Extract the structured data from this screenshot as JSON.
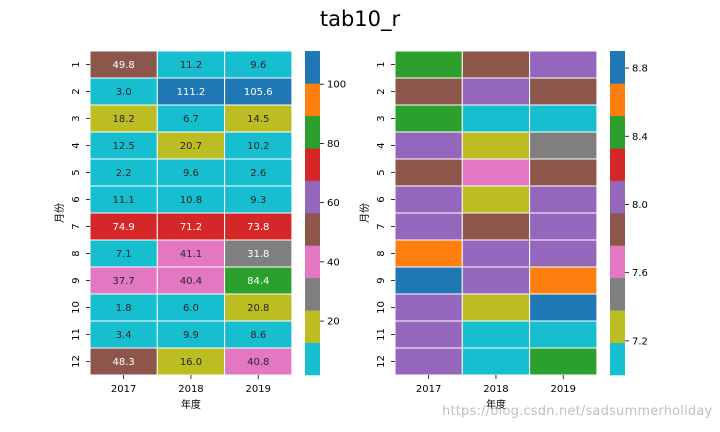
{
  "title": "tab10_r",
  "watermark": "https://blog.csdn.net/sadsummerholiday",
  "palette": [
    "#17becf",
    "#bcbd22",
    "#7f7f7f",
    "#e377c2",
    "#8c564b",
    "#9467bd",
    "#d62728",
    "#2ca02c",
    "#ff7f0e",
    "#1f77b4"
  ],
  "chart_data": [
    {
      "type": "heatmap",
      "colormap": "tab10_r",
      "xlabel": "年度",
      "ylabel": "月份",
      "x": [
        "2017",
        "2018",
        "2019"
      ],
      "y": [
        "1",
        "2",
        "3",
        "4",
        "5",
        "6",
        "7",
        "8",
        "9",
        "10",
        "11",
        "12"
      ],
      "annotate": true,
      "values": [
        [
          49.8,
          11.2,
          9.6
        ],
        [
          3.0,
          111.2,
          105.6
        ],
        [
          18.2,
          6.7,
          14.5
        ],
        [
          12.5,
          20.7,
          10.2
        ],
        [
          2.2,
          9.6,
          2.6
        ],
        [
          11.1,
          10.8,
          9.3
        ],
        [
          74.9,
          71.2,
          73.8
        ],
        [
          7.1,
          41.1,
          31.8
        ],
        [
          37.7,
          40.4,
          84.4
        ],
        [
          1.8,
          6.0,
          20.8
        ],
        [
          3.4,
          9.9,
          8.6
        ],
        [
          48.3,
          16.0,
          40.8
        ]
      ],
      "value_labels": [
        [
          "49.8",
          "11.2",
          "9.6"
        ],
        [
          "3.0",
          "111.2",
          "105.6"
        ],
        [
          "18.2",
          "6.7",
          "14.5"
        ],
        [
          "12.5",
          "20.7",
          "10.2"
        ],
        [
          "2.2",
          "9.6",
          "2.6"
        ],
        [
          "11.1",
          "10.8",
          "9.3"
        ],
        [
          "74.9",
          "71.2",
          "73.8"
        ],
        [
          "7.1",
          "41.1",
          "31.8"
        ],
        [
          "37.7",
          "40.4",
          "84.4"
        ],
        [
          "1.8",
          "6.0",
          "20.8"
        ],
        [
          "3.4",
          "9.9",
          "8.6"
        ],
        [
          "48.3",
          "16.0",
          "40.8"
        ]
      ],
      "vmin": 1.8,
      "vmax": 111.2,
      "colorbar_ticks": [
        "20",
        "40",
        "60",
        "80",
        "100"
      ]
    },
    {
      "type": "heatmap",
      "colormap": "tab10_r",
      "xlabel": "年度",
      "ylabel": "月份",
      "x": [
        "2017",
        "2018",
        "2019"
      ],
      "y": [
        "1",
        "2",
        "3",
        "4",
        "5",
        "6",
        "7",
        "8",
        "9",
        "10",
        "11",
        "12"
      ],
      "annotate": false,
      "values": [
        [
          8.35,
          7.8,
          7.95
        ],
        [
          7.8,
          7.95,
          7.8
        ],
        [
          8.35,
          7.05,
          7.05
        ],
        [
          7.95,
          7.25,
          7.45
        ],
        [
          7.8,
          7.6,
          7.8
        ],
        [
          7.95,
          7.25,
          8.05
        ],
        [
          7.95,
          7.8,
          8.05
        ],
        [
          8.6,
          8.05,
          7.95
        ],
        [
          8.8,
          7.95,
          8.6
        ],
        [
          8.05,
          7.25,
          8.8
        ],
        [
          8.05,
          7.05,
          7.05
        ],
        [
          8.05,
          7.05,
          8.35
        ]
      ],
      "vmin": 7.0,
      "vmax": 8.9,
      "colorbar_ticks": [
        "7.2",
        "7.6",
        "8.0",
        "8.4",
        "8.8"
      ]
    }
  ]
}
